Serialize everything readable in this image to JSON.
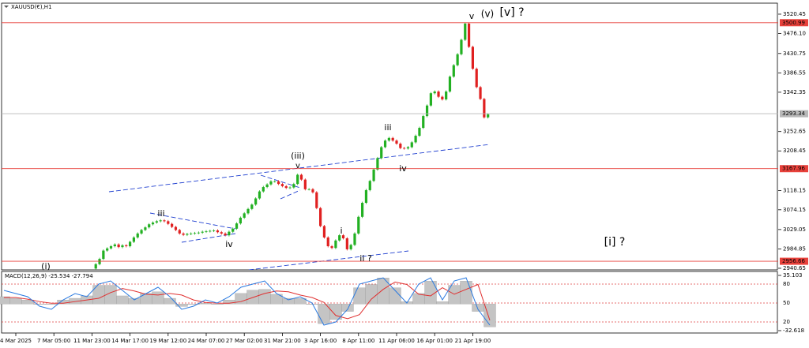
{
  "chart_data": [
    {
      "type": "candlestick",
      "title": "XAUUSD(€),H1",
      "up_color": "#22b022",
      "down_color": "#e02020",
      "categories": [
        "4 Mar 2025",
        null,
        null,
        null,
        null,
        null,
        null,
        null,
        null,
        null,
        "7 Mar 05:00",
        null,
        null,
        null,
        null,
        null,
        null,
        null,
        null,
        null,
        "11 Mar 23:00",
        null,
        null,
        null,
        null,
        null,
        null,
        null,
        null,
        null,
        "14 Mar 17:00",
        null,
        null,
        null,
        null,
        null,
        null,
        null,
        null,
        null,
        "19 Mar 12:00",
        null,
        null,
        null,
        null,
        null,
        null,
        null,
        null,
        null,
        "24 Mar 07:00",
        null,
        null,
        null,
        null,
        null,
        null,
        null,
        null,
        null,
        "27 Mar 02:00",
        null,
        null,
        null,
        null,
        null,
        null,
        null,
        null,
        null,
        "31 Mar 21:00",
        null,
        null,
        null,
        null,
        null,
        null,
        null,
        null,
        null,
        "3 Apr 16:00",
        null,
        null,
        null,
        null,
        null,
        null,
        null,
        null,
        null,
        "8 Apr 11:00",
        null,
        null,
        null,
        null,
        null,
        null,
        null,
        null,
        null,
        "11 Apr 06:00",
        null,
        null,
        null,
        null,
        null,
        null,
        null,
        null,
        null,
        "16 Apr 01:00",
        null,
        null,
        null,
        null,
        null,
        null,
        null,
        null,
        null,
        "21 Apr 19:00",
        null,
        null,
        null,
        null
      ],
      "values": [
        null,
        null,
        null,
        null,
        null,
        null,
        null,
        null,
        null,
        null,
        null,
        null,
        null,
        null,
        null,
        null,
        null,
        null,
        null,
        null,
        2940,
        2950,
        2962,
        2981,
        2986,
        2991,
        2995,
        2989,
        2993,
        2991,
        3001,
        3011,
        3020,
        3028,
        3034,
        3041,
        3045,
        3048,
        3050,
        3048,
        3042,
        3035,
        3028,
        3020,
        3017,
        3019,
        3020,
        3021,
        3022,
        3024,
        3025,
        3026,
        3027,
        3023,
        3020,
        3016,
        3024,
        3031,
        3043,
        3056,
        3066,
        3076,
        3086,
        3100,
        3116,
        3126,
        3132,
        3139,
        3139,
        3133,
        3128,
        3124,
        3125,
        3133,
        3154,
        3143,
        3121,
        3121,
        3114,
        3078,
        3037,
        3011,
        2991,
        2987,
        3004,
        3016,
        3009,
        2984,
        2994,
        3020,
        3058,
        3090,
        3119,
        3140,
        3166,
        3192,
        3217,
        3232,
        3238,
        3232,
        3225,
        3215,
        3214,
        3217,
        3228,
        3243,
        3261,
        3288,
        3312,
        3340,
        3344,
        3332,
        3326,
        3344,
        3378,
        3404,
        3429,
        3462,
        3499,
        3446,
        3396,
        3354,
        3327,
        3285,
        3292
      ],
      "ylim": [
        2937,
        3545.6
      ],
      "yticks": [
        3520.45,
        {
          "value": 3476.1,
          "label": "3476.10"
        },
        3430.75,
        3386.55,
        3342.35,
        3252.65,
        3208.45,
        3118.15,
        3074.15,
        3029.05,
        2984.85,
        2940.65
      ],
      "levels": [
        {
          "value": 3500.99,
          "color": "#e8413b"
        },
        {
          "value": 3293.34,
          "color": "#b8b8b8"
        },
        {
          "value": 3167.96,
          "color": "#e8413b"
        },
        {
          "value": 2956.66,
          "color": "#e8413b"
        }
      ],
      "annotations": [
        {
          "text": "(i)",
          "color": "#20209a"
        },
        {
          "text": "iii",
          "color": "#e020d8"
        },
        {
          "text": "iv",
          "color": "#e020d8"
        },
        {
          "text": "(iii)",
          "color": "#20209a"
        },
        {
          "text": "v",
          "color": "#e020d8"
        },
        {
          "text": "i",
          "color": "#e020d8"
        },
        {
          "text": "ii ?",
          "color": "#e020d8"
        },
        {
          "text": "iii",
          "color": "#e020d8"
        },
        {
          "text": "iv",
          "color": "#e020d8"
        },
        {
          "text": "v",
          "color": "#e020d8"
        },
        {
          "text": "(v)",
          "color": "#6a3ad0"
        },
        {
          "text": "[v] ?",
          "color": "#2a8a20"
        },
        {
          "text": "[i] ?",
          "color": "#2a8a20"
        }
      ]
    },
    {
      "type": "macd",
      "title": "MACD(12,26,9) -25.534 -27.794",
      "ylim": [
        -32.618,
        35.103
      ],
      "yticks": [
        35.103,
        -32.618
      ],
      "y2lim": [
        6.25,
        93.75
      ],
      "y2ticks": [
        80,
        50,
        20
      ],
      "grid_color": "#e04040",
      "series": [
        {
          "type": "histogram",
          "color": "#c4c4c4",
          "values": [
            9,
            7,
            5,
            0,
            0,
            5,
            7,
            10,
            23,
            23,
            10,
            7,
            13,
            15,
            7,
            -3,
            0,
            1,
            0,
            5,
            13,
            17,
            18,
            12,
            7,
            7,
            0,
            -24,
            -19,
            -9,
            20,
            24,
            32,
            20,
            3,
            13,
            28,
            3,
            23,
            28,
            -9,
            -28
          ]
        },
        {
          "type": "line",
          "color": "#e03030",
          "values": [
            8,
            8,
            6,
            3,
            1,
            1,
            3,
            5,
            7,
            14,
            19,
            16,
            12,
            11,
            13,
            11,
            5,
            2,
            1,
            1,
            3,
            8,
            13,
            16,
            15,
            11,
            8,
            2,
            -14,
            -18,
            -13,
            6,
            18,
            27,
            24,
            12,
            10,
            20,
            12,
            18,
            24,
            -20
          ]
        },
        {
          "type": "line",
          "color": "#2a7ae0",
          "axis": "y2",
          "values": [
            70,
            65,
            60,
            45,
            40,
            55,
            65,
            60,
            80,
            85,
            70,
            55,
            65,
            75,
            60,
            40,
            45,
            55,
            50,
            60,
            75,
            80,
            85,
            65,
            55,
            60,
            50,
            15,
            20,
            40,
            80,
            85,
            90,
            70,
            50,
            80,
            90,
            55,
            85,
            90,
            40,
            15
          ]
        }
      ]
    }
  ]
}
